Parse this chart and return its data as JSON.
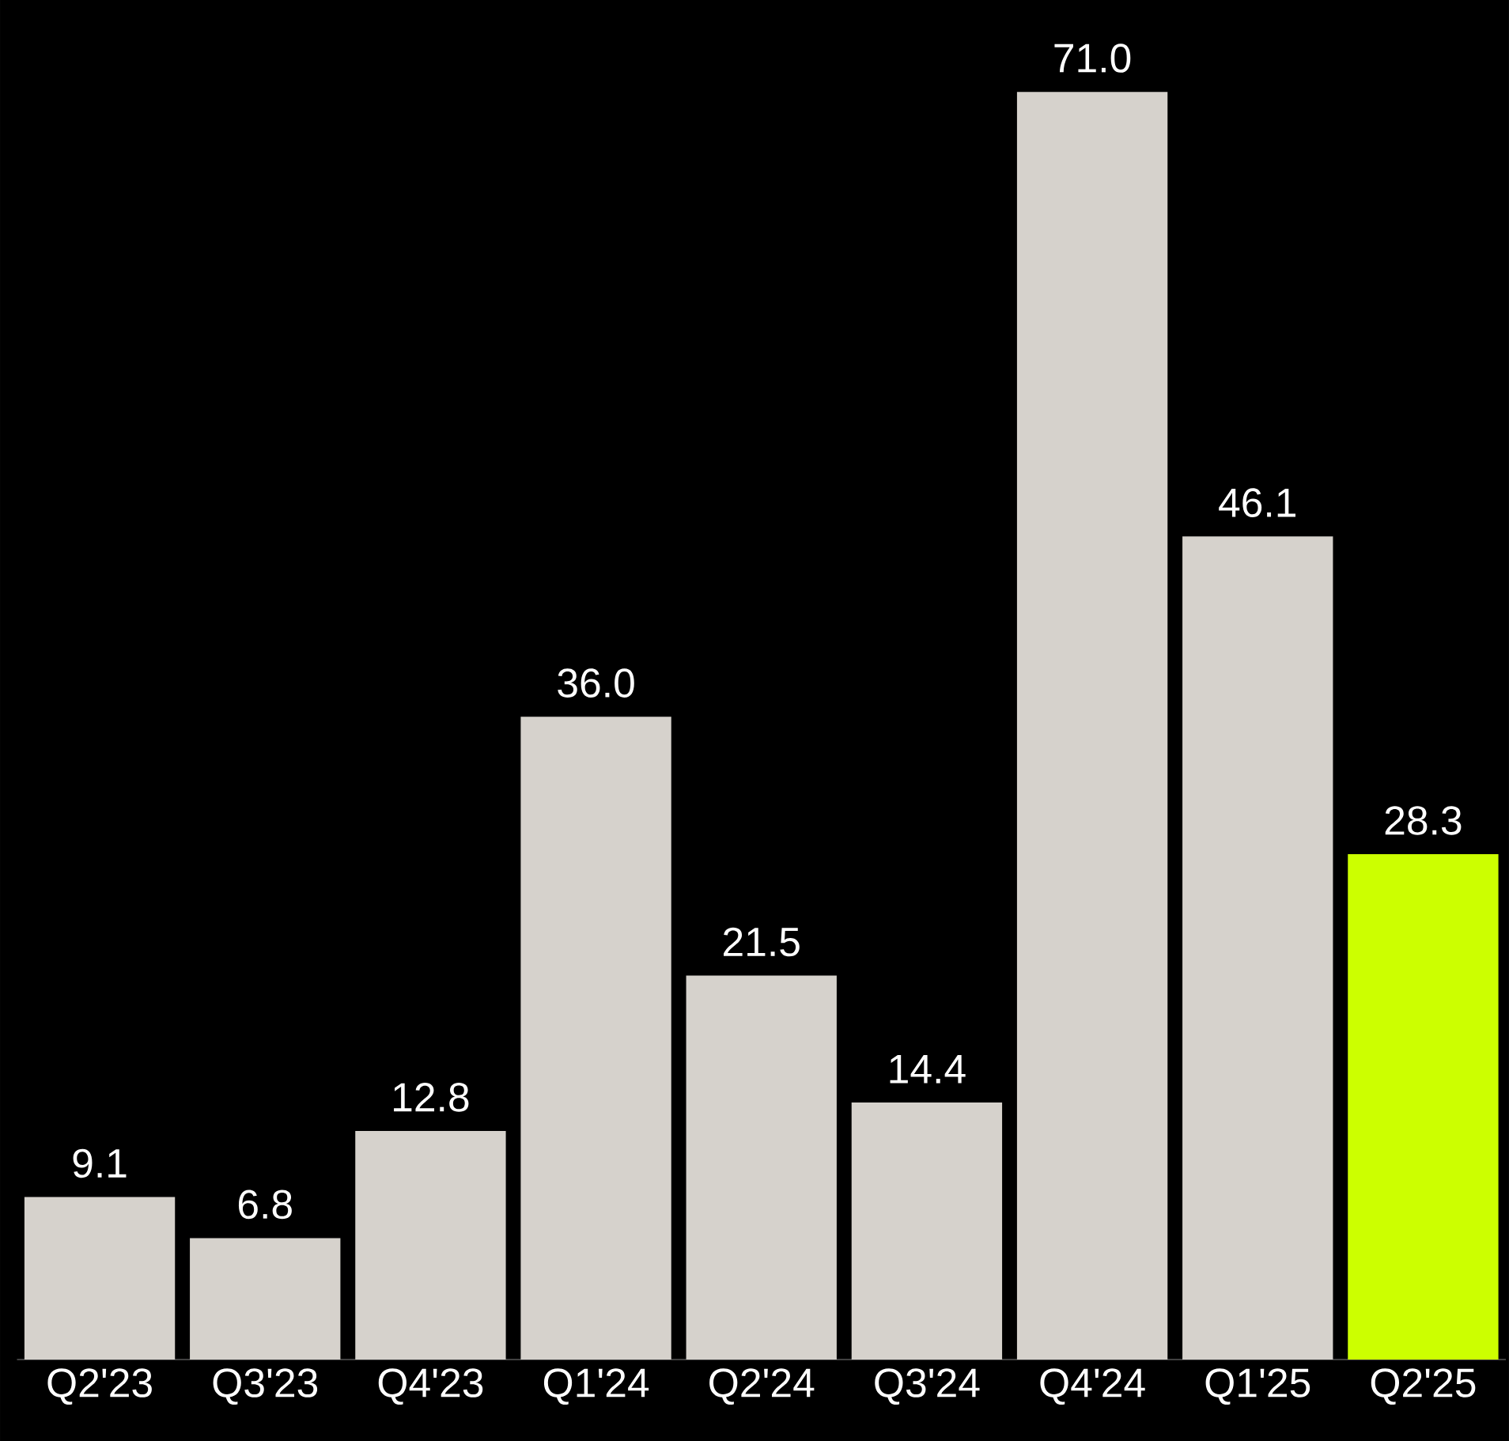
{
  "chart_data": {
    "type": "bar",
    "categories": [
      "Q2'23",
      "Q3'23",
      "Q4'23",
      "Q1'24",
      "Q2'24",
      "Q3'24",
      "Q4'24",
      "Q1'25",
      "Q2'25"
    ],
    "values": [
      9.1,
      6.8,
      12.8,
      36.0,
      21.5,
      14.4,
      71.0,
      46.1,
      28.3
    ],
    "value_labels": [
      "9.1",
      "6.8",
      "12.8",
      "36.0",
      "21.5",
      "14.4",
      "71.0",
      "46.1",
      "28.3"
    ],
    "colors": [
      "#d6d2cc",
      "#d6d2cc",
      "#d6d2cc",
      "#d6d2cc",
      "#d6d2cc",
      "#d6d2cc",
      "#d6d2cc",
      "#d6d2cc",
      "#ccff00"
    ],
    "tick_labels": "x"
  }
}
